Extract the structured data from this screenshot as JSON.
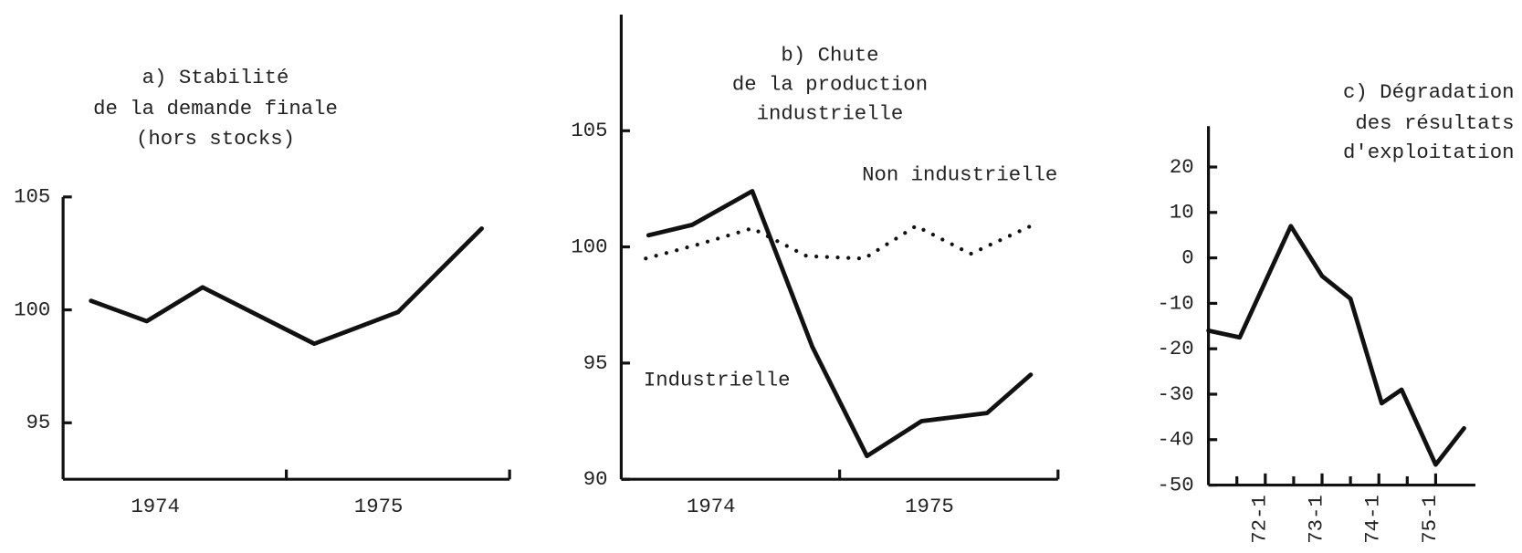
{
  "chart_data": [
    {
      "type": "line",
      "title": [
        "a) Stabilité",
        "de la demande finale",
        "(hors stocks)"
      ],
      "xlim": [
        0,
        8
      ],
      "xticks": [
        {
          "value": 2,
          "label": "1974"
        },
        {
          "value": 6,
          "label": "1975"
        }
      ],
      "ylim": [
        92.5,
        105
      ],
      "yticks": [
        95,
        100,
        105
      ],
      "series": [
        {
          "color": "#111111",
          "style": "solid",
          "x": [
            0.5,
            1.5,
            2.5,
            4.5,
            6,
            7.5
          ],
          "values": [
            100.4,
            99.5,
            101.0,
            98.5,
            99.9,
            103.6
          ]
        }
      ]
    },
    {
      "type": "line",
      "title": [
        "b) Chute",
        "de la production",
        "industrielle"
      ],
      "xlim": [
        0,
        8
      ],
      "xticks": [
        {
          "value": 2,
          "label": "1974"
        },
        {
          "value": 6,
          "label": "1975"
        }
      ],
      "ylim": [
        90,
        110
      ],
      "yticks": [
        90,
        95,
        100,
        105
      ],
      "series": [
        {
          "name": "Industrielle",
          "color": "#111111",
          "style": "solid",
          "x": [
            0.5,
            1.3,
            2.4,
            3.5,
            4.5,
            5.5,
            6.7,
            7.5
          ],
          "values": [
            100.5,
            100.95,
            102.4,
            95.7,
            91.0,
            92.5,
            92.85,
            94.5
          ]
        },
        {
          "name": "Non industrielle",
          "color": "#111111",
          "style": "dotted",
          "x": [
            0.45,
            1.4,
            2.4,
            3.4,
            4.45,
            5.4,
            6.4,
            7.5
          ],
          "values": [
            99.5,
            100.1,
            100.8,
            99.6,
            99.5,
            100.9,
            99.7,
            100.9
          ]
        }
      ]
    },
    {
      "type": "line",
      "title": [
        "c) Dégradation",
        "des résultats",
        "d'exploitation"
      ],
      "xlim": [
        71,
        75.7
      ],
      "xticks": [
        {
          "value": 72,
          "label": "72-1"
        },
        {
          "value": 73,
          "label": "73-1"
        },
        {
          "value": 74,
          "label": "74-1"
        },
        {
          "value": 75,
          "label": "75-1"
        }
      ],
      "ylim": [
        -50,
        29
      ],
      "yticks": [
        20,
        10,
        0,
        -10,
        -20,
        -30,
        -40,
        -50
      ],
      "series": [
        {
          "color": "#111111",
          "style": "solid",
          "x": [
            71,
            71.55,
            72.45,
            73,
            73.5,
            74.05,
            74.4,
            75,
            75.5
          ],
          "values": [
            -16,
            -17.5,
            7,
            -4,
            -9,
            -32,
            -29,
            -45.5,
            -37.5
          ]
        }
      ]
    }
  ]
}
